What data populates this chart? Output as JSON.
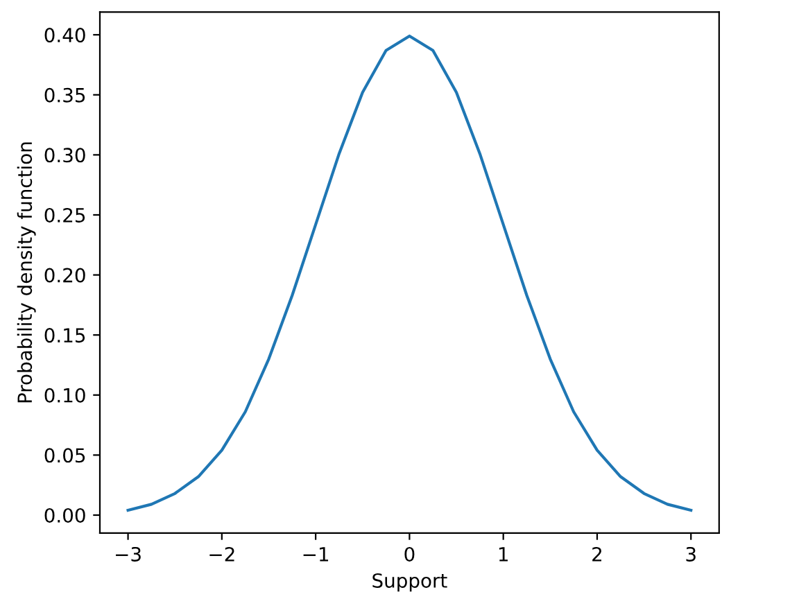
{
  "chart_data": {
    "type": "line",
    "xlabel": "Support",
    "ylabel": "Probability density function",
    "x": [
      -3,
      -2.75,
      -2.5,
      -2.25,
      -2,
      -1.75,
      -1.5,
      -1.25,
      -1,
      -0.75,
      -0.5,
      -0.25,
      0,
      0.25,
      0.5,
      0.75,
      1,
      1.25,
      1.5,
      1.75,
      2,
      2.25,
      2.5,
      2.75,
      3
    ],
    "series": [
      {
        "color": "#1f77b4",
        "values": [
          0.004,
          0.009,
          0.018,
          0.032,
          0.054,
          0.086,
          0.13,
          0.183,
          0.242,
          0.301,
          0.352,
          0.387,
          0.399,
          0.387,
          0.352,
          0.301,
          0.242,
          0.183,
          0.13,
          0.086,
          0.054,
          0.032,
          0.018,
          0.009,
          0.004
        ]
      }
    ],
    "xlim": [
      -3.3,
      3.3
    ],
    "ylim": [
      -0.015,
      0.419
    ],
    "xticks": [
      {
        "value": -3,
        "label": "−3"
      },
      {
        "value": -2,
        "label": "−2"
      },
      {
        "value": -1,
        "label": "−1"
      },
      0,
      1,
      2,
      3
    ],
    "yticks": [
      {
        "value": 0,
        "label": "0.00"
      },
      {
        "value": 0.05,
        "label": "0.05"
      },
      {
        "value": 0.1,
        "label": "0.10"
      },
      {
        "value": 0.15,
        "label": "0.15"
      },
      {
        "value": 0.2,
        "label": "0.20"
      },
      {
        "value": 0.25,
        "label": "0.25"
      },
      {
        "value": 0.3,
        "label": "0.30"
      },
      {
        "value": 0.35,
        "label": "0.35"
      },
      {
        "value": 0.4,
        "label": "0.40"
      }
    ],
    "marker": "none",
    "line_style": "solid",
    "grid": false,
    "legend": false
  }
}
